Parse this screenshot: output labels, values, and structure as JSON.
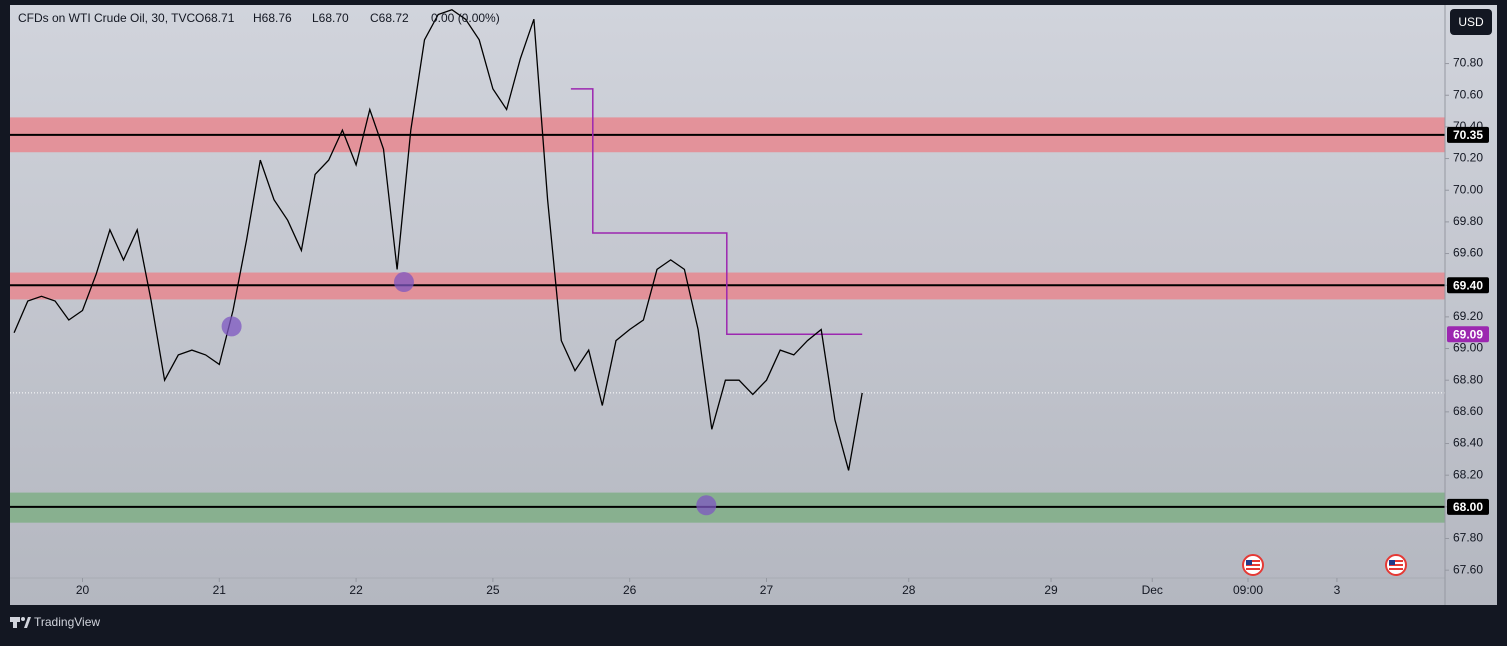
{
  "header": {
    "symbol": "CFDs on WTI Crude Oil, 30, TVC",
    "open": "O68.71",
    "high": "H68.76",
    "low": "L68.70",
    "close": "C68.72",
    "change": "0.00 (0.00%)"
  },
  "currency": "USD",
  "brand": "TradingView",
  "chart_data": {
    "type": "line",
    "x": [
      -0.5,
      -0.4,
      -0.3,
      -0.2,
      -0.1,
      0,
      0.1,
      0.2,
      0.3,
      0.4,
      0.5,
      0.6,
      0.7,
      0.8,
      0.9,
      1,
      1.1,
      1.2,
      1.3,
      1.4,
      1.5,
      1.6,
      1.7,
      1.8,
      1.9,
      2,
      2.1,
      2.2,
      2.3,
      2.4,
      2.5,
      2.6,
      2.7,
      2.8,
      2.9,
      3,
      3.1,
      3.2,
      3.3,
      3.4,
      3.5,
      3.6,
      3.7,
      3.8,
      3.9,
      4,
      4.1,
      4.2,
      4.3,
      4.4,
      4.5,
      4.6,
      4.7,
      4.8,
      4.9,
      5,
      5.1,
      5.2,
      5.3,
      5.4,
      5.5,
      5.6,
      5.7
    ],
    "values": [
      69.1,
      69.3,
      69.33,
      69.3,
      69.18,
      69.24,
      69.47,
      69.75,
      69.56,
      69.75,
      69.31,
      68.8,
      68.96,
      68.99,
      68.96,
      68.9,
      69.24,
      69.69,
      70.19,
      69.94,
      69.81,
      69.62,
      70.1,
      70.19,
      70.38,
      70.16,
      70.51,
      70.26,
      69.5,
      70.38,
      70.95,
      71.11,
      71.14,
      71.08,
      70.95,
      70.64,
      70.51,
      70.83,
      71.08,
      69.94,
      69.05,
      68.86,
      68.99,
      68.64,
      69.05,
      69.12,
      69.18,
      69.5,
      69.56,
      69.5,
      69.12,
      68.49,
      68.8,
      68.8,
      68.71,
      68.8,
      68.99,
      68.96,
      69.05,
      69.12,
      68.55,
      68.23,
      68.72
    ],
    "color": "#000000",
    "xlim": [
      -0.53,
      9.96
    ],
    "ylim": [
      67.38,
      71.17
    ],
    "xticks": [
      {
        "value": 0,
        "label": "20"
      },
      {
        "value": 1,
        "label": "21"
      },
      {
        "value": 2,
        "label": "22"
      },
      {
        "value": 3,
        "label": "25"
      },
      {
        "value": 4,
        "label": "26"
      },
      {
        "value": 5,
        "label": "27"
      },
      {
        "value": 6.04,
        "label": "28"
      },
      {
        "value": 7.08,
        "label": "29"
      },
      {
        "value": 7.82,
        "label": "Dec"
      },
      {
        "value": 8.52,
        "label": "09:00"
      },
      {
        "value": 9.17,
        "label": "3"
      }
    ],
    "yticks": [
      {
        "value": 67.6,
        "label": "67.60"
      },
      {
        "value": 67.8,
        "label": "67.80"
      },
      {
        "value": 68.0,
        "label": "68.00"
      },
      {
        "value": 68.2,
        "label": "68.20"
      },
      {
        "value": 68.4,
        "label": "68.40"
      },
      {
        "value": 68.6,
        "label": "68.60"
      },
      {
        "value": 68.8,
        "label": "68.80"
      },
      {
        "value": 69.0,
        "label": "69.00"
      },
      {
        "value": 69.2,
        "label": "69.20"
      },
      {
        "value": 69.4,
        "label": "69.40"
      },
      {
        "value": 69.6,
        "label": "69.60"
      },
      {
        "value": 69.8,
        "label": "69.80"
      },
      {
        "value": 70.0,
        "label": "70.00"
      },
      {
        "value": 70.2,
        "label": "70.20"
      },
      {
        "value": 70.4,
        "label": "70.40"
      },
      {
        "value": 70.6,
        "label": "70.60"
      },
      {
        "value": 70.8,
        "label": "70.80"
      }
    ],
    "grid": false,
    "zones": [
      {
        "low": 70.24,
        "high": 70.46,
        "color": "#e8878f",
        "level": {
          "value": 70.35,
          "label": "70.35"
        }
      },
      {
        "low": 69.31,
        "high": 69.48,
        "color": "#e8878f",
        "level": {
          "value": 69.4,
          "label": "69.40"
        }
      },
      {
        "low": 67.9,
        "high": 68.09,
        "color": "#7fae86",
        "level": {
          "value": 68.0,
          "label": "68.00"
        }
      }
    ],
    "step_line": {
      "x": [
        3.57,
        3.73,
        3.73,
        4.71,
        4.71,
        5.7
      ],
      "values": [
        70.64,
        70.64,
        69.73,
        69.73,
        69.09,
        69.09
      ],
      "color": "#9c27b0",
      "level": {
        "value": 69.09,
        "label": "69.09"
      }
    },
    "markers": {
      "x": [
        1.09,
        2.35,
        4.56
      ],
      "values": [
        69.14,
        69.42,
        68.01
      ],
      "color": "#7e57c2"
    },
    "last_price": 68.72
  }
}
